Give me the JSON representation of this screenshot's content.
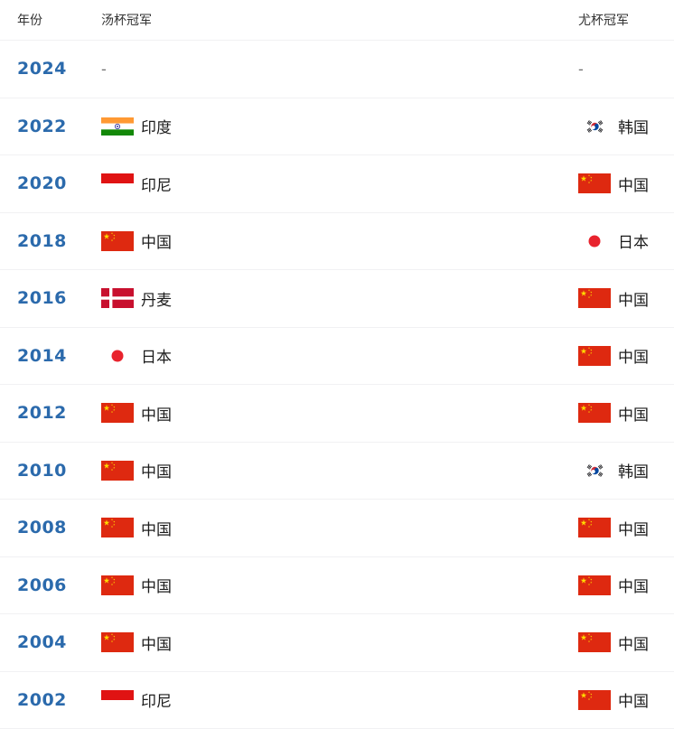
{
  "table": {
    "headers": {
      "year": "年份",
      "thomas": "汤杯冠军",
      "uber": "尤杯冠军"
    },
    "rows": [
      {
        "year": "2024",
        "thomas": {
          "country": "-",
          "flag": "none"
        },
        "uber": {
          "country": "-",
          "flag": "none"
        }
      },
      {
        "year": "2022",
        "thomas": {
          "country": "印度",
          "flag": "india"
        },
        "uber": {
          "country": "韩国",
          "flag": "south-korea"
        }
      },
      {
        "year": "2020",
        "thomas": {
          "country": "印尼",
          "flag": "indonesia"
        },
        "uber": {
          "country": "中国",
          "flag": "china"
        }
      },
      {
        "year": "2018",
        "thomas": {
          "country": "中国",
          "flag": "china"
        },
        "uber": {
          "country": "日本",
          "flag": "japan"
        }
      },
      {
        "year": "2016",
        "thomas": {
          "country": "丹麦",
          "flag": "denmark"
        },
        "uber": {
          "country": "中国",
          "flag": "china"
        }
      },
      {
        "year": "2014",
        "thomas": {
          "country": "日本",
          "flag": "japan"
        },
        "uber": {
          "country": "中国",
          "flag": "china"
        }
      },
      {
        "year": "2012",
        "thomas": {
          "country": "中国",
          "flag": "china"
        },
        "uber": {
          "country": "中国",
          "flag": "china"
        }
      },
      {
        "year": "2010",
        "thomas": {
          "country": "中国",
          "flag": "china"
        },
        "uber": {
          "country": "韩国",
          "flag": "south-korea"
        }
      },
      {
        "year": "2008",
        "thomas": {
          "country": "中国",
          "flag": "china"
        },
        "uber": {
          "country": "中国",
          "flag": "china"
        }
      },
      {
        "year": "2006",
        "thomas": {
          "country": "中国",
          "flag": "china"
        },
        "uber": {
          "country": "中国",
          "flag": "china"
        }
      },
      {
        "year": "2004",
        "thomas": {
          "country": "中国",
          "flag": "china"
        },
        "uber": {
          "country": "中国",
          "flag": "china"
        }
      },
      {
        "year": "2002",
        "thomas": {
          "country": "印尼",
          "flag": "indonesia"
        },
        "uber": {
          "country": "中国",
          "flag": "china"
        }
      }
    ],
    "colors": {
      "year_link": "#2b6aac",
      "text": "#1c1c1c",
      "header_text": "#333333",
      "row_border": "#f1f1f3",
      "china_red": "#de2910",
      "japan_red": "#e8232d",
      "indonesia_red": "#e01313",
      "denmark_red": "#c8102e",
      "india_orange": "#ff9933",
      "india_green": "#138808",
      "korea_red": "#cd2e3a",
      "korea_blue": "#0047a0"
    }
  }
}
